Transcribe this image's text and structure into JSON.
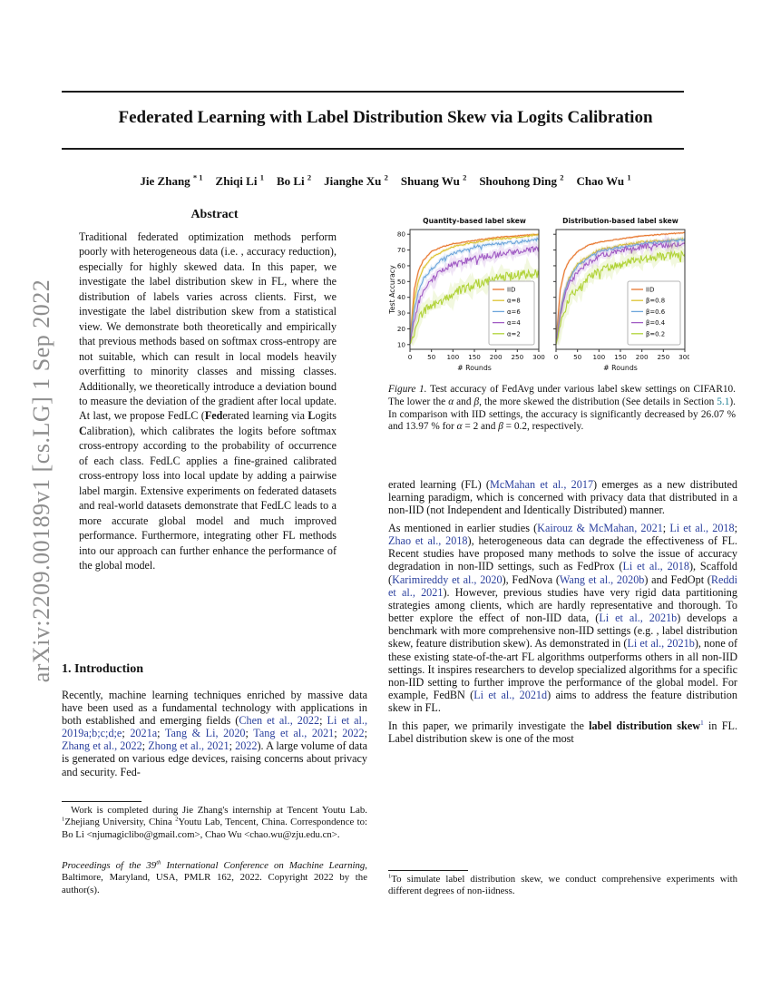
{
  "colors": {
    "citation": "#2a3f9d",
    "section_ref": "#1b7f93",
    "arxiv_gray": "#8e8e8e"
  },
  "sidebar": {
    "arxiv_label": "arXiv:2209.00189v1  [cs.LG]  1 Sep 2022"
  },
  "header": {
    "title": "Federated Learning with Label Distribution Skew via Logits Calibration",
    "authors": [
      {
        "name": "Jie Zhang",
        "sup": "* 1"
      },
      {
        "name": "Zhiqi Li",
        "sup": "1"
      },
      {
        "name": "Bo Li",
        "sup": "2"
      },
      {
        "name": "Jianghe Xu",
        "sup": "2"
      },
      {
        "name": "Shuang Wu",
        "sup": "2"
      },
      {
        "name": "Shouhong Ding",
        "sup": "2"
      },
      {
        "name": "Chao Wu",
        "sup": "1"
      }
    ]
  },
  "left_column": {
    "abstract_heading": "Abstract",
    "abstract": [
      {
        "t": "Traditional federated optimization methods perform poorly with heterogeneous data (i.e. , accuracy reduction), especially for highly skewed data. In this paper, we investigate the label distribution skew in FL, where the distribution of labels varies across clients. First, we investigate the label distribution skew from a statistical view. We demonstrate both theoretically and empirically that previous methods based on softmax cross-entropy are not suitable, which can result in local models heavily overfitting to minority classes and missing classes. Additionally, we theoretically introduce a deviation bound to measure the deviation of the gradient after local update. At last, we propose FedLC ("
      },
      {
        "t": "Fed",
        "s": "b"
      },
      {
        "t": "erated learning via "
      },
      {
        "t": "L",
        "s": "b"
      },
      {
        "t": "ogits "
      },
      {
        "t": "C",
        "s": "b"
      },
      {
        "t": "alibration), which calibrates the logits before softmax cross-entropy according to the probability of occurrence of each class. FedLC applies a fine-grained calibrated cross-entropy loss into local update by adding a pairwise label margin. Extensive experiments on federated datasets and real-world datasets demonstrate that FedLC leads to a more accurate global model and much improved performance. Furthermore, integrating other FL methods into our approach can further enhance the performance of the global model."
      }
    ],
    "intro_heading": "1. Introduction",
    "intro": [
      {
        "t": "Recently, machine learning techniques enriched by massive data have been used as a fundamental technology with applications in both established and emerging fields ("
      },
      {
        "t": "Chen et al., 2022",
        "s": "cite"
      },
      {
        "t": "; "
      },
      {
        "t": "Li et al., 2019a;b;c;d;e",
        "s": "cite"
      },
      {
        "t": "; "
      },
      {
        "t": "2021a",
        "s": "cite"
      },
      {
        "t": "; "
      },
      {
        "t": "Tang & Li, 2020",
        "s": "cite"
      },
      {
        "t": "; "
      },
      {
        "t": "Tang et al., 2021",
        "s": "cite"
      },
      {
        "t": "; "
      },
      {
        "t": "2022",
        "s": "cite"
      },
      {
        "t": "; "
      },
      {
        "t": "Zhang et al., 2022",
        "s": "cite"
      },
      {
        "t": "; "
      },
      {
        "t": "Zhong et al., 2021",
        "s": "cite"
      },
      {
        "t": "; "
      },
      {
        "t": "2022",
        "s": "cite"
      },
      {
        "t": "). A large volume of data is generated on various edge devices, raising concerns about privacy and security. Fed-"
      }
    ],
    "footnote": [
      {
        "t": "Work is completed during Jie Zhang's internship at Tencent Youtu Lab. "
      },
      {
        "t": "1",
        "s": "sup"
      },
      {
        "t": "Zhejiang University, China "
      },
      {
        "t": "2",
        "s": "sup"
      },
      {
        "t": "Youtu Lab, Tencent, China. Correspondence to: Bo Li <njumagiclibo@gmail.com>, Chao Wu <chao.wu@zju.edu.cn>."
      }
    ],
    "proceedings": [
      {
        "t": "Proceedings of the 39",
        "s": "i"
      },
      {
        "t": "th",
        "s": "i sup"
      },
      {
        "t": " International Conference on Machine Learning",
        "s": "i"
      },
      {
        "t": ", Baltimore, Maryland, USA, PMLR 162, 2022. Copyright 2022 by the author(s)."
      }
    ]
  },
  "right_column": {
    "caption": [
      {
        "t": "Figure 1.",
        "s": "i"
      },
      {
        "t": " Test accuracy of FedAvg under various label skew settings on CIFAR10. The lower the "
      },
      {
        "t": "α",
        "s": "i"
      },
      {
        "t": " and "
      },
      {
        "t": "β",
        "s": "i"
      },
      {
        "t": ", the more skewed the distribution (See details in Section "
      },
      {
        "t": "5.1",
        "s": "secref"
      },
      {
        "t": "). In comparison with IID settings, the accuracy is significantly decreased by 26.07 % and 13.97 % for "
      },
      {
        "t": "α",
        "s": "i"
      },
      {
        "t": " = 2 and "
      },
      {
        "t": "β",
        "s": "i"
      },
      {
        "t": " = 0.2, respectively."
      }
    ],
    "p1": [
      {
        "t": "erated learning (FL) ("
      },
      {
        "t": "McMahan et al., 2017",
        "s": "cite"
      },
      {
        "t": ") emerges as a new distributed learning paradigm, which is concerned with privacy data that distributed in a non-IID (not Independent and Identically Distributed) manner."
      }
    ],
    "p2": [
      {
        "t": "As mentioned in earlier studies ("
      },
      {
        "t": "Kairouz & McMahan, 2021",
        "s": "cite"
      },
      {
        "t": "; "
      },
      {
        "t": "Li et al., 2018",
        "s": "cite"
      },
      {
        "t": "; "
      },
      {
        "t": "Zhao et al., 2018",
        "s": "cite"
      },
      {
        "t": "), heterogeneous data can degrade the effectiveness of FL. Recent studies have proposed many methods to solve the issue of accuracy degradation in non-IID settings, such as FedProx ("
      },
      {
        "t": "Li et al., 2018",
        "s": "cite"
      },
      {
        "t": "), Scaffold ("
      },
      {
        "t": "Karimireddy et al., 2020",
        "s": "cite"
      },
      {
        "t": "), FedNova ("
      },
      {
        "t": "Wang et al., 2020b",
        "s": "cite"
      },
      {
        "t": ") and FedOpt ("
      },
      {
        "t": "Reddi et al., 2021",
        "s": "cite"
      },
      {
        "t": "). However, previous studies have very rigid data partitioning strategies among clients, which are hardly representative and thorough. To better explore the effect of non-IID data,  ("
      },
      {
        "t": "Li et al., 2021b",
        "s": "cite"
      },
      {
        "t": ") develops a benchmark with more comprehensive non-IID settings (e.g. , label distribution skew, feature distribution skew). As demonstrated in ("
      },
      {
        "t": "Li et al., 2021b",
        "s": "cite"
      },
      {
        "t": "), none of these existing state-of-the-art FL algorithms outperforms others in all non-IID settings. It inspires researchers to develop specialized algorithms for a specific non-IID setting to further improve the performance of the global model. For example, FedBN ("
      },
      {
        "t": "Li et al., 2021d",
        "s": "cite"
      },
      {
        "t": ") aims to address the feature distribution skew in FL."
      }
    ],
    "p3": [
      {
        "t": "In this paper, we primarily investigate the "
      },
      {
        "t": "label distribution skew",
        "s": "b"
      },
      {
        "t": "1",
        "s": "sup cite"
      },
      {
        "t": " in FL. Label distribution skew is one of the most"
      }
    ],
    "footnote": [
      {
        "t": "1",
        "s": "sup"
      },
      {
        "t": "To simulate label distribution skew, we conduct comprehensive experiments with different degrees of non-iidness."
      }
    ]
  },
  "chart_data": [
    {
      "type": "line",
      "title": "Quantity-based label skew",
      "xlabel": "# Rounds",
      "ylabel": "Test Accuracy",
      "xlim": [
        0,
        300
      ],
      "ylim": [
        7,
        83
      ],
      "xticks": [
        0,
        50,
        100,
        150,
        200,
        250,
        300
      ],
      "yticks": [
        10,
        20,
        30,
        40,
        50,
        60,
        70,
        80
      ],
      "show_ytick_labels": true,
      "grid": false,
      "legend_position": "lower right",
      "x_samples": [
        0,
        10,
        20,
        30,
        50,
        75,
        100,
        150,
        200,
        250,
        300
      ],
      "series": [
        {
          "name": "IID",
          "color": "#e8772e",
          "noise": 0.25,
          "values": [
            12,
            45,
            57,
            63,
            69,
            72,
            74,
            76,
            78,
            79,
            80
          ]
        },
        {
          "name": "α=8",
          "color": "#ddc332",
          "noise": 0.5,
          "values": [
            12,
            38,
            51,
            58,
            65,
            69,
            72,
            75,
            77,
            78,
            80
          ]
        },
        {
          "name": "α=6",
          "color": "#6ea6db",
          "noise": 0.9,
          "values": [
            12,
            32,
            44,
            51,
            58,
            64,
            68,
            72,
            74,
            75,
            77
          ]
        },
        {
          "name": "α=4",
          "color": "#a05bc4",
          "noise": 1.9,
          "values": [
            11,
            26,
            36,
            44,
            51,
            57,
            61,
            65,
            67,
            69,
            71
          ]
        },
        {
          "name": "α=2",
          "color": "#b1d338",
          "noise": 3.0,
          "values": [
            10,
            17,
            25,
            31,
            34,
            38,
            43,
            48,
            52,
            54,
            55
          ]
        }
      ]
    },
    {
      "type": "line",
      "title": "Distribution-based label skew",
      "xlabel": "# Rounds",
      "ylabel": "",
      "xlim": [
        0,
        300
      ],
      "ylim": [
        7,
        83
      ],
      "xticks": [
        0,
        50,
        100,
        150,
        200,
        250,
        300
      ],
      "yticks": [
        10,
        20,
        30,
        40,
        50,
        60,
        70,
        80
      ],
      "show_ytick_labels": false,
      "grid": false,
      "legend_position": "lower right",
      "x_samples": [
        0,
        10,
        20,
        30,
        50,
        75,
        100,
        150,
        200,
        250,
        300
      ],
      "series": [
        {
          "name": "IID",
          "color": "#e8772e",
          "noise": 0.25,
          "values": [
            12,
            45,
            57,
            63,
            69,
            73,
            75,
            77,
            79,
            80,
            81
          ]
        },
        {
          "name": "β=0.8",
          "color": "#ddc332",
          "noise": 0.7,
          "values": [
            12,
            31,
            44,
            52,
            61,
            66,
            70,
            73,
            75,
            76,
            77
          ]
        },
        {
          "name": "β=0.6",
          "color": "#6ea6db",
          "noise": 0.8,
          "values": [
            12,
            30,
            43,
            51,
            60,
            65,
            69,
            72,
            74,
            75,
            77
          ]
        },
        {
          "name": "β=0.4",
          "color": "#a05bc4",
          "noise": 1.7,
          "values": [
            11,
            29,
            41,
            48,
            56,
            62,
            66,
            70,
            72,
            73,
            74
          ]
        },
        {
          "name": "β=0.2",
          "color": "#b1d338",
          "noise": 2.8,
          "values": [
            10,
            22,
            32,
            39,
            46,
            52,
            57,
            61,
            64,
            66,
            67
          ]
        }
      ]
    }
  ]
}
